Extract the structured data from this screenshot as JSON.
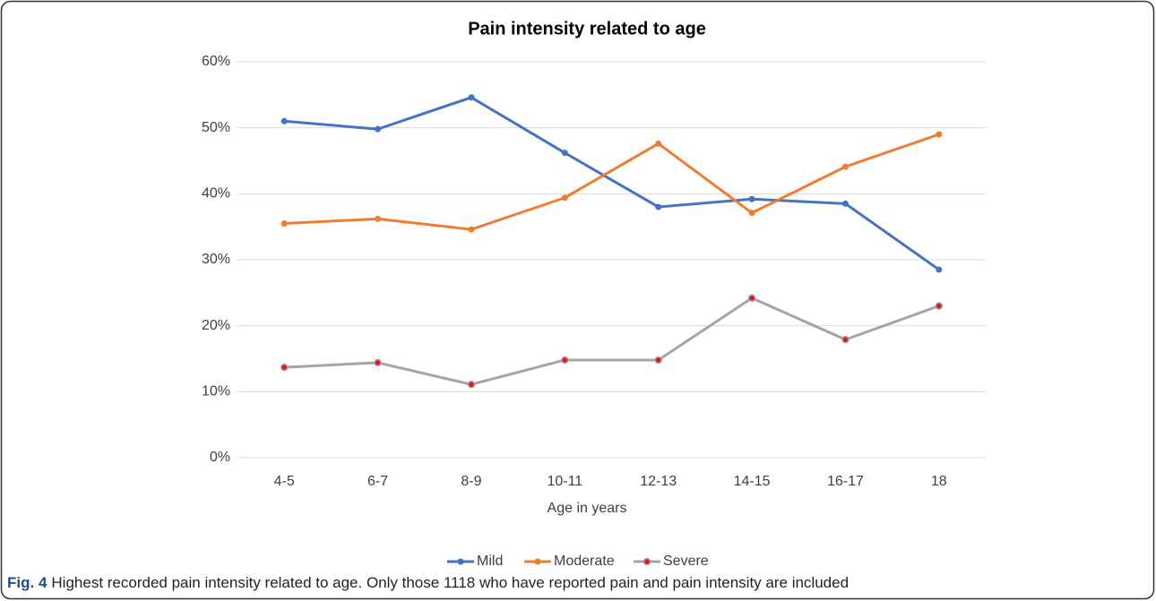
{
  "chart_data": {
    "type": "line",
    "title": "Pain intensity related to age",
    "x_label": "Age in years",
    "categories": [
      "4-5",
      "6-7",
      "8-9",
      "10-11",
      "12-13",
      "14-15",
      "16-17",
      "18"
    ],
    "series": [
      {
        "name": "Mild",
        "color": "#4472c4",
        "values": [
          51,
          49.8,
          54.6,
          46.2,
          38,
          39.2,
          38.5,
          28.5
        ]
      },
      {
        "name": "Moderate",
        "color": "#ed7d31",
        "values": [
          35.5,
          36.2,
          34.6,
          39.4,
          47.6,
          37.1,
          44.1,
          49
        ]
      },
      {
        "name": "Severe",
        "color": "#a5a5a5",
        "marker_color": "#e8141c",
        "values": [
          13.7,
          14.4,
          11.1,
          14.8,
          14.8,
          24.2,
          17.9,
          23
        ]
      }
    ],
    "ylim": [
      0,
      60
    ],
    "yticks": [
      {
        "value": 0,
        "label": "0%"
      },
      {
        "value": 10,
        "label": "10%"
      },
      {
        "value": 20,
        "label": "20%"
      },
      {
        "value": 30,
        "label": "30%"
      },
      {
        "value": 40,
        "label": "40%"
      },
      {
        "value": 50,
        "label": "50%"
      },
      {
        "value": 60,
        "label": "60%"
      }
    ],
    "grid": true,
    "legend": "bottom"
  },
  "caption": {
    "label": "Fig. 4",
    "text": "Highest recorded pain intensity related to age. Only those 1118 who have reported pain and pain intensity are included"
  }
}
